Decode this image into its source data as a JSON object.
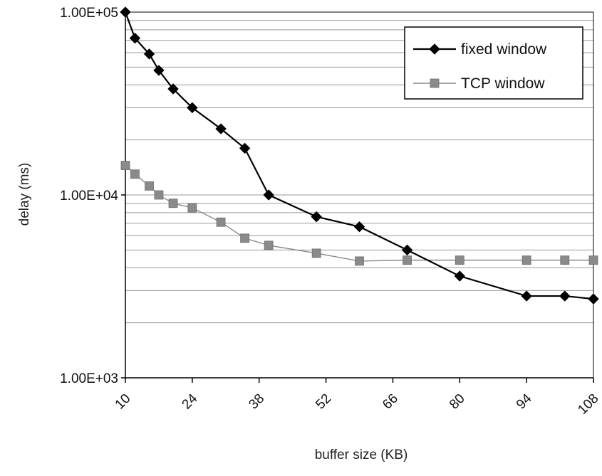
{
  "chart_data": {
    "type": "line",
    "title": "",
    "xlabel": "buffer size (KB)",
    "ylabel": "delay (ms)",
    "x_ticks": [
      10,
      24,
      38,
      52,
      66,
      80,
      94,
      108
    ],
    "xlim": [
      10,
      108
    ],
    "y_scale": "log",
    "ylim": [
      1000,
      100000
    ],
    "y_ticks": [
      "1.00E+03",
      "1.00E+04",
      "1.00E+05"
    ],
    "y_tick_values": [
      1000,
      10000,
      100000
    ],
    "grid": true,
    "legend_position": "top-right",
    "series": [
      {
        "name": "fixed window",
        "marker": "diamond",
        "color": "#000000",
        "x": [
          10,
          12,
          15,
          17,
          20,
          24,
          30,
          35,
          40,
          50,
          59,
          69,
          80,
          94,
          102,
          108
        ],
        "y": [
          100000,
          72000,
          59000,
          48000,
          38000,
          30000,
          23000,
          18000,
          10000,
          7600,
          6700,
          5000,
          3600,
          2800,
          2800,
          2700
        ]
      },
      {
        "name": "TCP window",
        "marker": "square",
        "color": "#8a8a8a",
        "x": [
          10,
          12,
          15,
          17,
          20,
          24,
          30,
          35,
          40,
          50,
          59,
          69,
          80,
          94,
          102,
          108
        ],
        "y": [
          14500,
          13000,
          11200,
          10000,
          9000,
          8500,
          7100,
          5800,
          5300,
          4800,
          4350,
          4400,
          4400,
          4400,
          4400,
          4400
        ]
      }
    ]
  }
}
